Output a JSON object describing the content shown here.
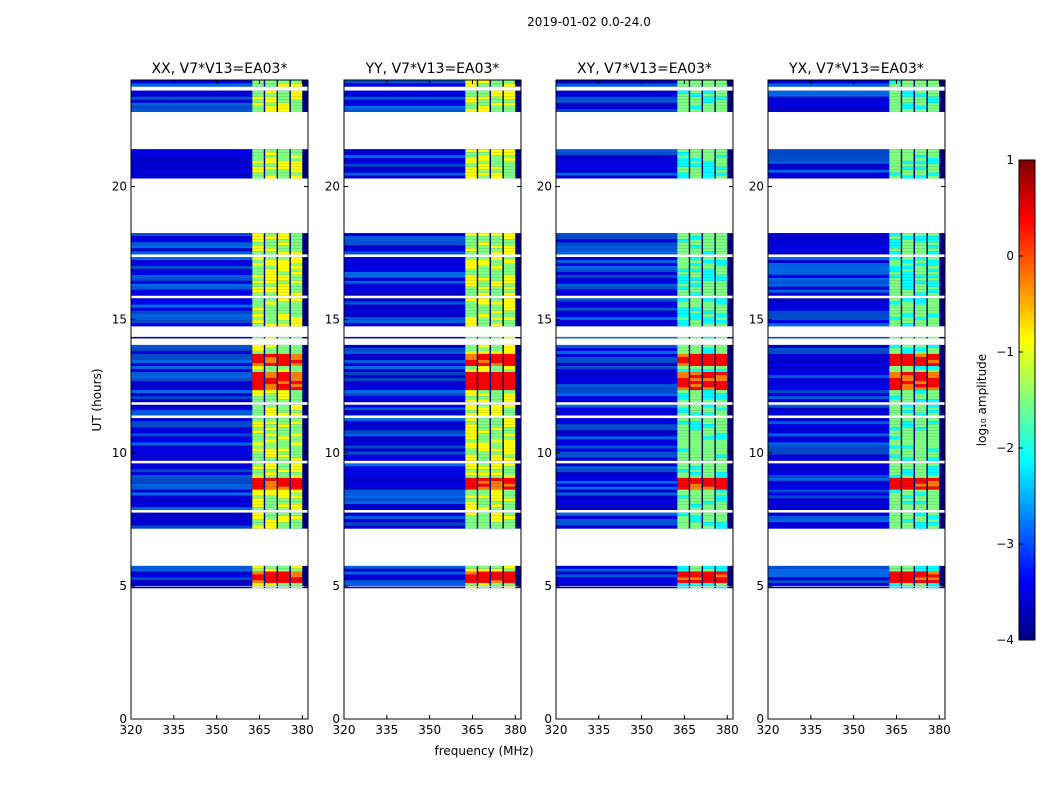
{
  "suptitle": "2019-01-02 0.0-24.0",
  "colors": {
    "background": "#ffffff",
    "axis": "#000000",
    "colormap": [
      "#00007f",
      "#0000ff",
      "#007fff",
      "#00ffff",
      "#7fff7f",
      "#ffff00",
      "#ff7f00",
      "#ff0000",
      "#7f0000"
    ]
  },
  "chart_data": {
    "type": "heatmap",
    "xlabel": "frequency (MHz)",
    "ylabel": "UT (hours)",
    "xlim": [
      320,
      382
    ],
    "ylim": [
      0,
      24
    ],
    "xticks": [
      320,
      335,
      350,
      365,
      380
    ],
    "yticks": [
      0,
      5,
      10,
      15,
      20
    ],
    "panels": [
      {
        "title": "XX, V7*V13=EA03*",
        "polarization": "XX"
      },
      {
        "title": "YY, V7*V13=EA03*",
        "polarization": "YY"
      },
      {
        "title": "XY, V7*V13=EA03*",
        "polarization": "XY"
      },
      {
        "title": "YX, V7*V13=EA03*",
        "polarization": "YX"
      }
    ],
    "data_time_blocks_hours": [
      [
        4.95,
        4.97
      ],
      [
        5.0,
        5.75
      ],
      [
        7.15,
        7.75
      ],
      [
        7.85,
        9.6
      ],
      [
        9.7,
        11.3
      ],
      [
        11.4,
        11.8
      ],
      [
        11.9,
        14.05
      ],
      [
        14.3,
        14.35
      ],
      [
        14.75,
        15.8
      ],
      [
        15.9,
        17.35
      ],
      [
        17.45,
        18.25
      ],
      [
        20.3,
        21.4
      ],
      [
        22.8,
        23.6
      ],
      [
        23.75,
        24.0
      ]
    ],
    "flagged_gaps_hours": [
      [
        0.0,
        4.95
      ],
      [
        5.75,
        7.15
      ],
      [
        18.25,
        20.3
      ],
      [
        21.4,
        22.8
      ]
    ],
    "strong_signal_band_MHz": [
      362.5,
      381.5
    ],
    "strong_signal_subbands_MHz": [
      [
        362.5,
        366.5
      ],
      [
        367.0,
        371.0
      ],
      [
        371.5,
        375.5
      ],
      [
        376.0,
        380.0
      ]
    ],
    "bright_times_hours": [
      5.3,
      8.8,
      12.5,
      12.8,
      13.5
    ],
    "colorbar": {
      "label": "log₁₀ amplitude",
      "min": -4,
      "max": 1,
      "ticks": [
        -4,
        -3,
        -2,
        -1,
        0,
        1
      ],
      "tick_labels": [
        "−4",
        "−3",
        "−2",
        "−1",
        "0",
        "1"
      ]
    }
  }
}
